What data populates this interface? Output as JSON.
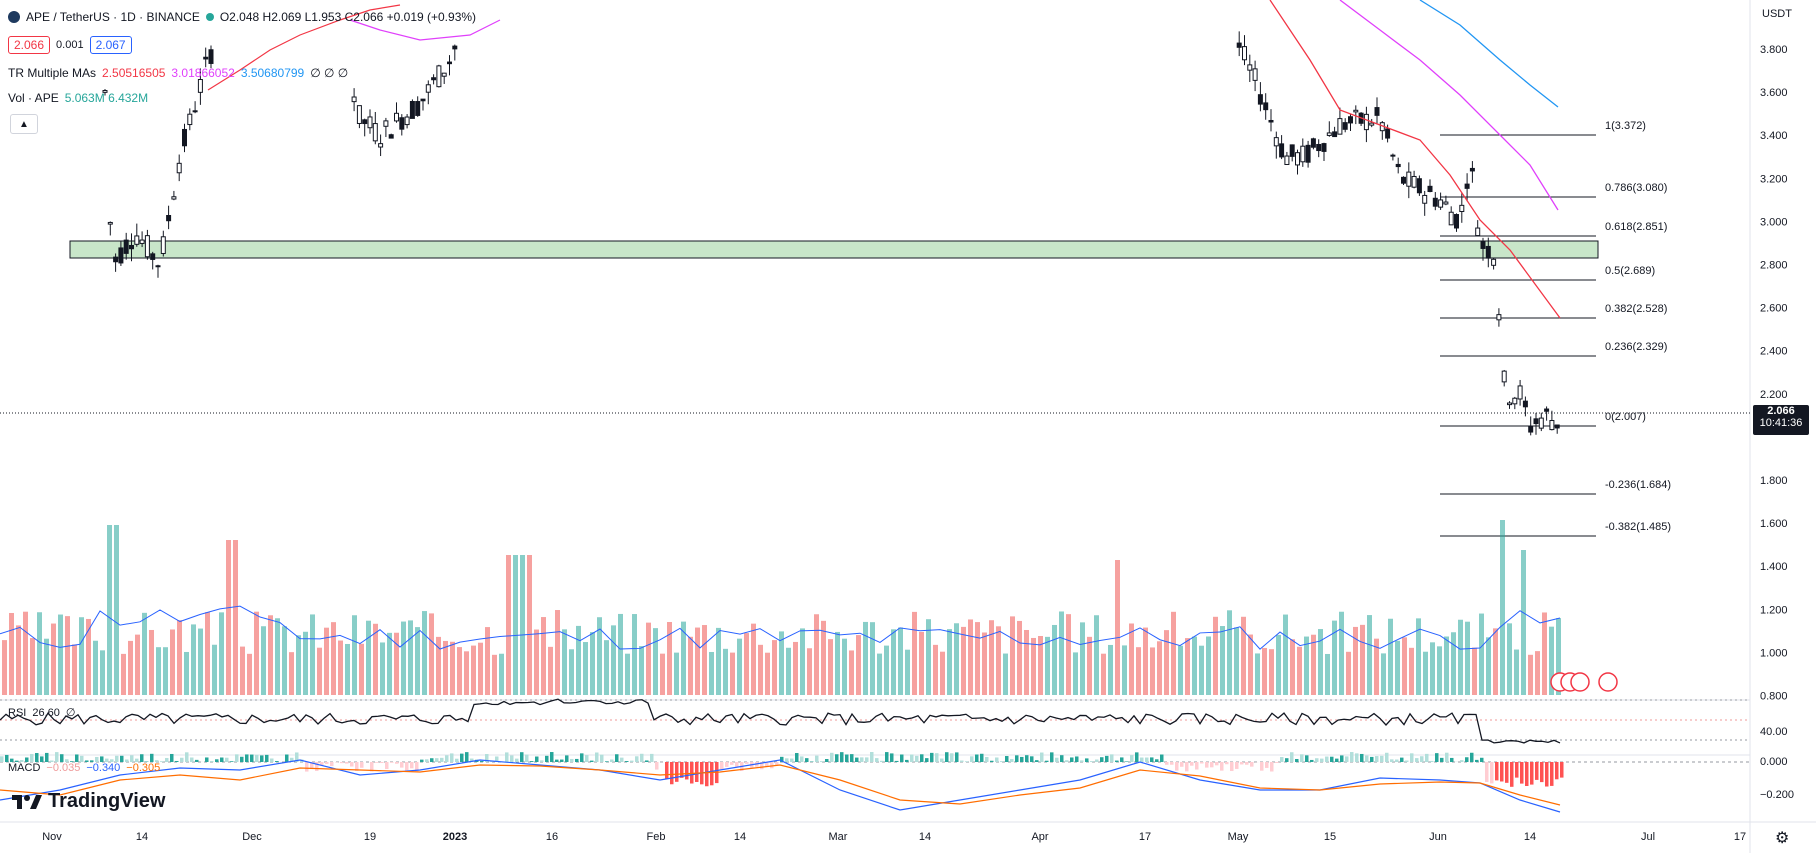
{
  "header": {
    "symbol": "APE / TetherUS · 1D · BINANCE",
    "ohlc": "O2.048  H2.069  L1.953  C2.066  +0.019 (+0.93%)",
    "bid": "2.066",
    "spread": "0.001",
    "ask": "2.067",
    "ma_label": "TR Multiple MAs",
    "ma_values": [
      "2.50516505",
      "3.01866052",
      "3.50680799"
    ],
    "ma_zeros": "∅  ∅  ∅",
    "vol_label": "Vol · APE",
    "vol_values": "5.063M  6.432M",
    "currency": "USDT"
  },
  "price_axis": [
    "3.800",
    "3.600",
    "3.400",
    "3.200",
    "3.000",
    "2.800",
    "2.600",
    "2.400",
    "2.200",
    "1.800",
    "1.600",
    "1.400",
    "1.200",
    "1.000",
    "0.800"
  ],
  "current_price": {
    "value": "2.066",
    "countdown": "10:41:36"
  },
  "fib_levels": [
    {
      "label": "1(3.372)"
    },
    {
      "label": "0.786(3.080)"
    },
    {
      "label": "0.618(2.851)"
    },
    {
      "label": "0.5(2.689)"
    },
    {
      "label": "0.382(2.528)"
    },
    {
      "label": "0.236(2.329)"
    },
    {
      "label": "0(2.007)"
    },
    {
      "label": "-0.236(1.684)"
    },
    {
      "label": "-0.382(1.485)"
    }
  ],
  "rsi": {
    "label": "RSI",
    "value": "26.60",
    "zeros": "∅",
    "axis": "40.00"
  },
  "macd": {
    "label": "MACD",
    "v1": "−0.035",
    "v2": "−0.340",
    "v3": "−0.305",
    "axis_top": "0.000",
    "axis_bottom": "−0.200"
  },
  "time_axis": [
    "Nov",
    "14",
    "Dec",
    "19",
    "2023",
    "16",
    "Feb",
    "14",
    "Mar",
    "14",
    "Apr",
    "17",
    "May",
    "15",
    "Jun",
    "14",
    "Jul",
    "17"
  ],
  "brand": "TradingView",
  "colors": {
    "up": "#26a69a",
    "down": "#ef5350",
    "ma1": "#f23645",
    "ma2": "#e040fb",
    "ma3": "#2196f3",
    "zone": "#c8e6c9"
  }
}
